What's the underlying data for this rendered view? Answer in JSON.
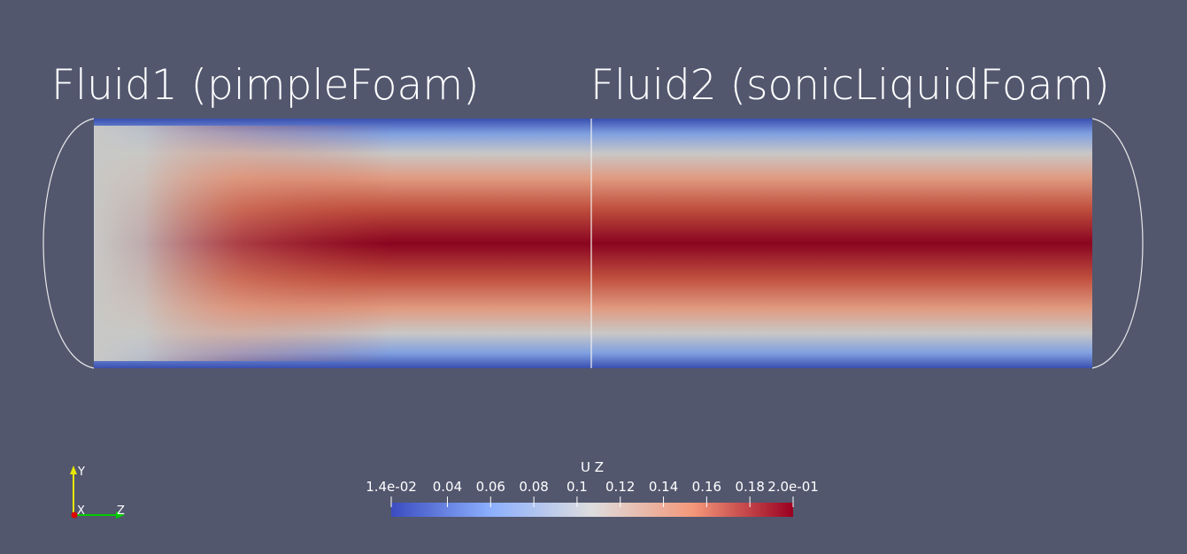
{
  "labels": {
    "left": "Fluid1 (pimpleFoam)",
    "right": "Fluid2 (sonicLiquidFoam)"
  },
  "axes": {
    "y": "Y",
    "x": "X",
    "z": "Z"
  },
  "colorbar": {
    "title": "U Z",
    "range": [
      0.014,
      0.2
    ],
    "ticks": [
      {
        "value": 0.014,
        "label": "1.4e-02"
      },
      0.04,
      0.06,
      0.08,
      0.1,
      0.12,
      0.14,
      0.16,
      0.18,
      {
        "value": 0.2,
        "label": "2.0e-01"
      }
    ]
  }
}
